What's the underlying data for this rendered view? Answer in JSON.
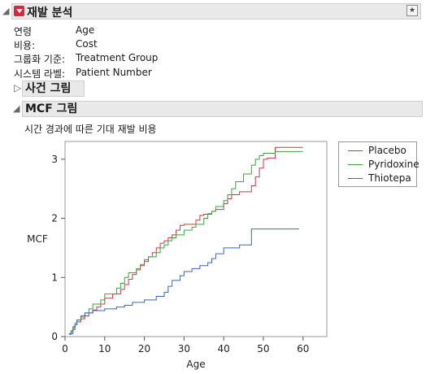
{
  "report": {
    "title": "재발 분석",
    "info": [
      {
        "key": "연령",
        "value": "Age"
      },
      {
        "key": "비용:",
        "value": "Cost"
      },
      {
        "key": "그룹화 기준:",
        "value": "Treatment Group"
      },
      {
        "key": "시스템 라벨:",
        "value": "Patient Number"
      }
    ],
    "event_plot_title": "사건 그림",
    "mcf_title": "MCF 그림",
    "chart_caption": "시간 경과에 따른 기대 재발 비용"
  },
  "colors": {
    "Placebo": "#c8394b",
    "Pyridoxine": "#3ea33e",
    "Thiotepa": "#3c64c0"
  },
  "chart_data": {
    "type": "line",
    "step": true,
    "title": "시간 경과에 따른 기대 재발 비용",
    "xlabel": "Age",
    "ylabel": "MCF",
    "xlim": [
      0,
      66
    ],
    "ylim": [
      0,
      3.3
    ],
    "x_ticks": [
      0,
      10,
      20,
      30,
      40,
      50,
      60
    ],
    "y_ticks": [
      0,
      1,
      2,
      3
    ],
    "legend_position": "right",
    "series": [
      {
        "name": "Placebo",
        "x": [
          1,
          1.5,
          2,
          2.5,
          3,
          4,
          5,
          6,
          7,
          8,
          9,
          10,
          12,
          14,
          15,
          16,
          17,
          18,
          19,
          20,
          21,
          22,
          23,
          24,
          25,
          26,
          27,
          28,
          29,
          30,
          33,
          34,
          35,
          37,
          38,
          40,
          41,
          42,
          44,
          47,
          48,
          49,
          50,
          51,
          53,
          60
        ],
        "y": [
          0.04,
          0.08,
          0.15,
          0.2,
          0.25,
          0.3,
          0.35,
          0.4,
          0.45,
          0.5,
          0.55,
          0.65,
          0.72,
          0.8,
          0.88,
          0.97,
          1.05,
          1.13,
          1.2,
          1.27,
          1.35,
          1.42,
          1.5,
          1.58,
          1.62,
          1.67,
          1.72,
          1.8,
          1.88,
          1.9,
          1.97,
          2.05,
          2.07,
          2.12,
          2.15,
          2.25,
          2.33,
          2.4,
          2.45,
          2.55,
          2.7,
          2.85,
          3.0,
          3.02,
          3.2,
          3.2
        ]
      },
      {
        "name": "Pyridoxine",
        "x": [
          1,
          1.5,
          2,
          2.5,
          3,
          4,
          5,
          6,
          7,
          9,
          10,
          13,
          14,
          15,
          16,
          18,
          19,
          20,
          21,
          23,
          24,
          25,
          26,
          27,
          28,
          30,
          32,
          33,
          35,
          36,
          37,
          38,
          40,
          41,
          42,
          43,
          45,
          47,
          48,
          49,
          50,
          53,
          60
        ],
        "y": [
          0.04,
          0.1,
          0.17,
          0.23,
          0.28,
          0.33,
          0.4,
          0.47,
          0.55,
          0.62,
          0.72,
          0.82,
          0.9,
          1.0,
          1.08,
          1.15,
          1.22,
          1.3,
          1.35,
          1.42,
          1.5,
          1.55,
          1.62,
          1.67,
          1.72,
          1.8,
          1.85,
          1.9,
          2.0,
          2.08,
          2.12,
          2.2,
          2.3,
          2.4,
          2.5,
          2.62,
          2.75,
          2.9,
          3.0,
          3.06,
          3.1,
          3.13,
          3.13
        ]
      },
      {
        "name": "Thiotepa",
        "x": [
          1,
          2,
          2.5,
          3,
          4,
          5,
          7,
          10,
          13,
          15,
          17,
          20,
          23,
          25,
          26,
          27,
          29,
          30,
          32,
          34,
          36,
          37,
          38,
          40,
          44,
          47,
          59
        ],
        "y": [
          0.05,
          0.12,
          0.2,
          0.28,
          0.35,
          0.4,
          0.44,
          0.47,
          0.5,
          0.53,
          0.58,
          0.62,
          0.68,
          0.75,
          0.85,
          0.95,
          1.03,
          1.1,
          1.15,
          1.2,
          1.25,
          1.32,
          1.4,
          1.5,
          1.55,
          1.82,
          1.82
        ]
      }
    ]
  }
}
